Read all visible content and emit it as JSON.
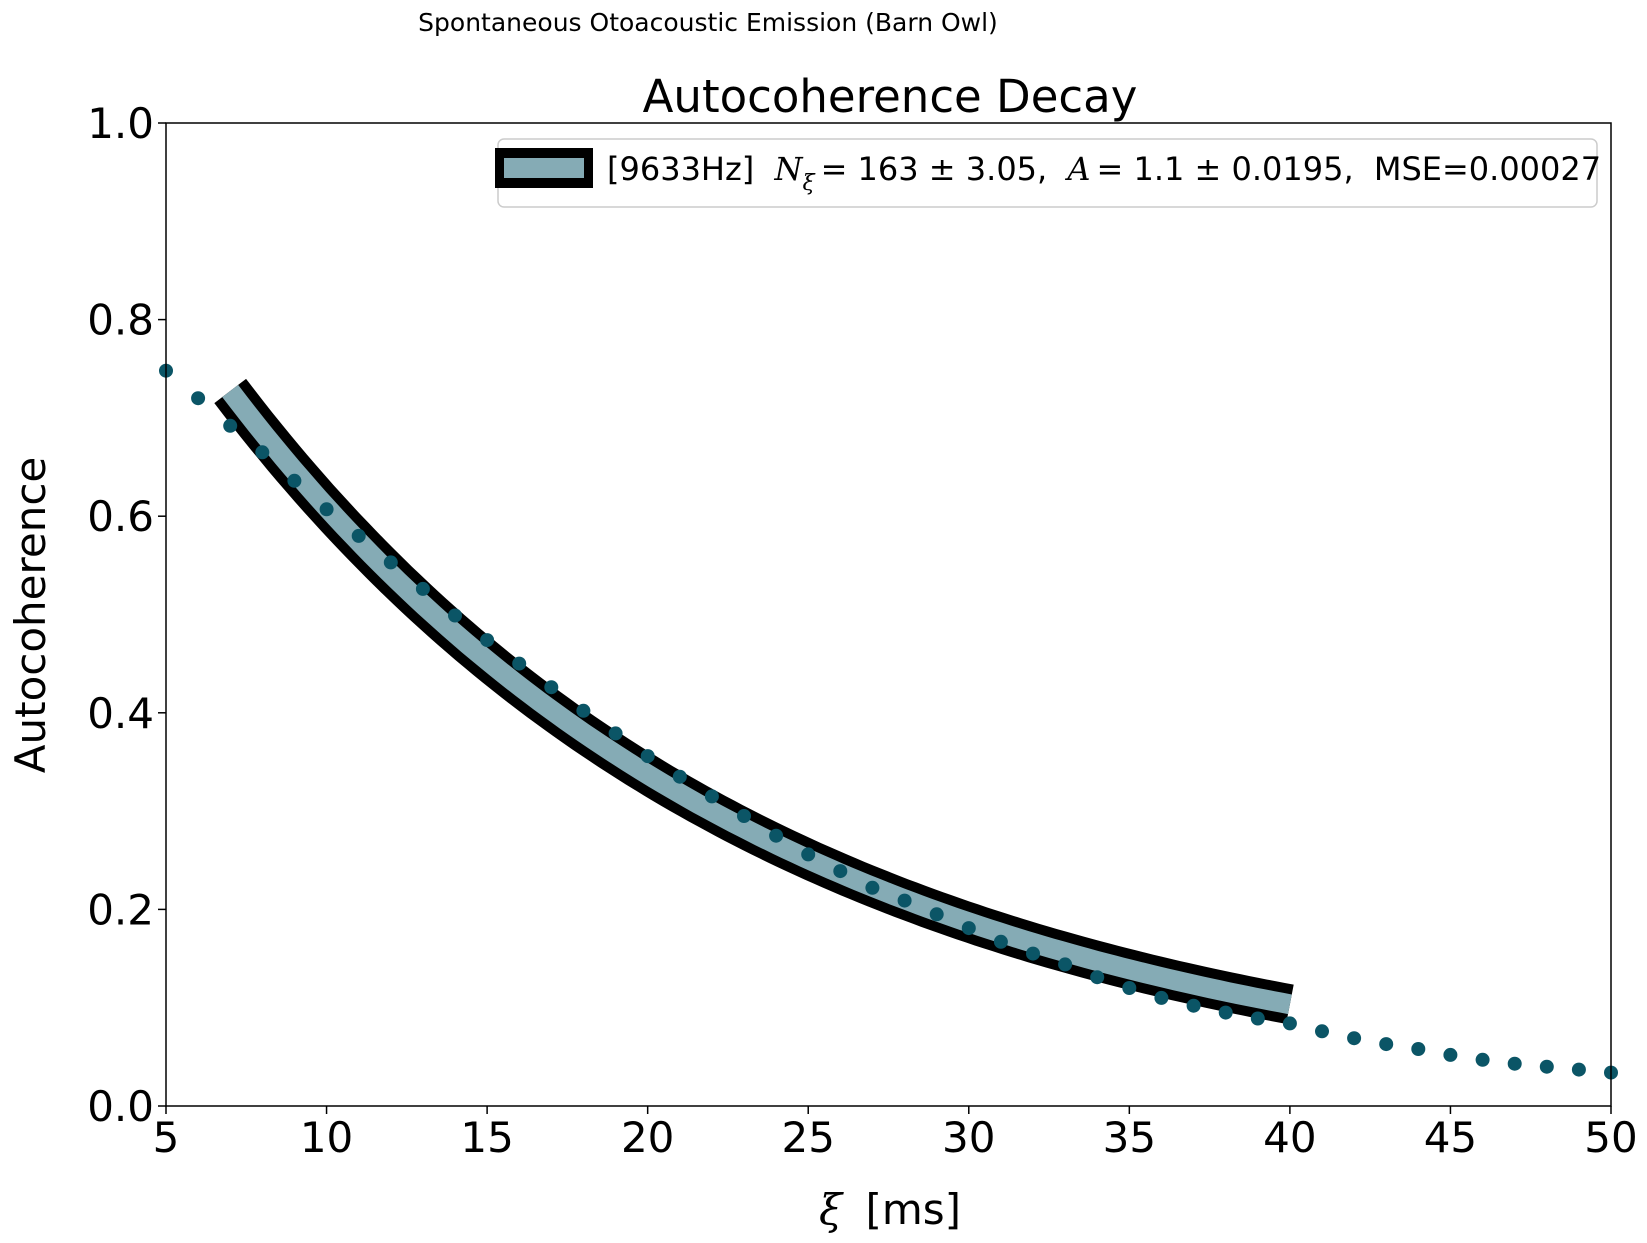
{
  "suptitle": "Spontaneous Otoacoustic Emission (Barn Owl)",
  "chart_data": {
    "type": "scatter",
    "title": "Autocoherence Decay",
    "xlabel_symbol": "ξ",
    "xlabel_unit": "[ms]",
    "ylabel": "Autocoherence",
    "xlim": [
      5,
      50
    ],
    "ylim": [
      0.0,
      1.0
    ],
    "xticks": [
      5,
      10,
      15,
      20,
      25,
      30,
      35,
      40,
      45,
      50
    ],
    "xtick_labels": [
      "5",
      "10",
      "15",
      "20",
      "25",
      "30",
      "35",
      "40",
      "45",
      "50"
    ],
    "yticks": [
      0.0,
      0.2,
      0.4,
      0.6,
      0.8,
      1.0
    ],
    "ytick_labels": [
      "0.0",
      "0.2",
      "0.4",
      "0.6",
      "0.8",
      "1.0"
    ],
    "grid": false,
    "legend_position": "top-right",
    "points": {
      "name": "Autocoherence data",
      "color": "#0b5566",
      "x": [
        5,
        6,
        7,
        8,
        9,
        10,
        11,
        12,
        13,
        14,
        15,
        16,
        17,
        18,
        19,
        20,
        21,
        22,
        23,
        24,
        25,
        26,
        27,
        28,
        29,
        30,
        31,
        32,
        33,
        34,
        35,
        36,
        37,
        38,
        39,
        40,
        41,
        42,
        43,
        44,
        45,
        46,
        47,
        48,
        49,
        50
      ],
      "y": [
        0.748,
        0.72,
        0.692,
        0.665,
        0.636,
        0.607,
        0.58,
        0.553,
        0.526,
        0.499,
        0.474,
        0.45,
        0.426,
        0.402,
        0.379,
        0.356,
        0.335,
        0.315,
        0.295,
        0.275,
        0.256,
        0.239,
        0.222,
        0.209,
        0.195,
        0.181,
        0.167,
        0.155,
        0.144,
        0.131,
        0.12,
        0.11,
        0.102,
        0.095,
        0.089,
        0.084,
        0.076,
        0.069,
        0.063,
        0.058,
        0.052,
        0.047,
        0.043,
        0.04,
        0.037,
        0.034
      ]
    },
    "fit": {
      "label_freq": "[9633Hz]",
      "N_symbol": "N",
      "N_subscript": "ξ",
      "N_value": "= 163 ± 3.05,",
      "A_symbol": "A",
      "A_value": "= 1.1 ± 0.0195,",
      "mse": "MSE=0.00027",
      "N_xi": 163,
      "A": 1.1,
      "x_start": 7,
      "x_end": 40,
      "color": "#85abb5",
      "edge_color": "#000000"
    }
  }
}
